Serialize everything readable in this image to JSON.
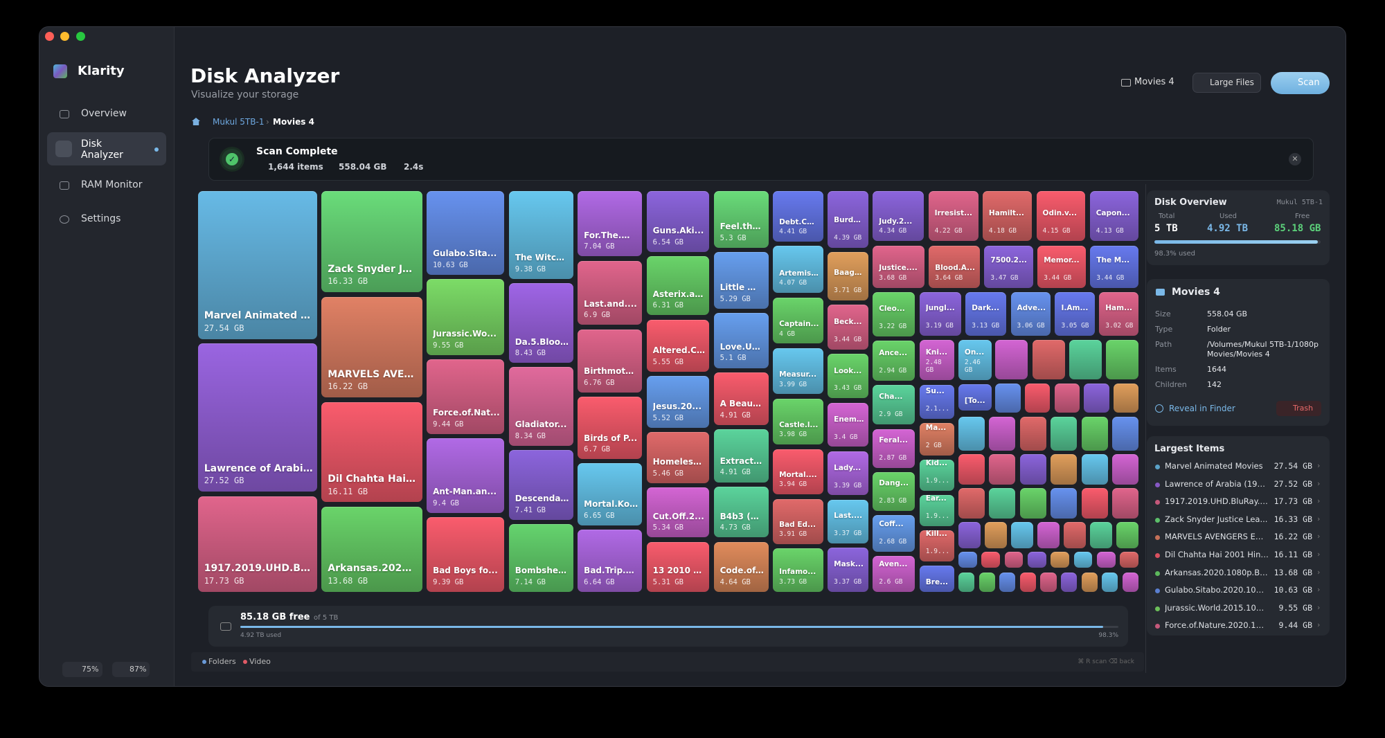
{
  "app": {
    "name": "Klarity"
  },
  "sidebar": {
    "nav": [
      "Overview",
      "Disk Analyzer",
      "RAM Monitor",
      "Settings"
    ],
    "badges": [
      "75%",
      "87%"
    ]
  },
  "header": {
    "title": "Disk Analyzer",
    "subtitle": "Visualize your storage",
    "folder_button": "Movies 4",
    "large_files_button": "Large Files",
    "scan_button": "Scan"
  },
  "breadcrumb": [
    "Mukul 5TB-1",
    "Movies 4"
  ],
  "scan_banner": {
    "title": "Scan Complete",
    "items": "1,644 items",
    "size": "558.04 GB",
    "time": "2.4s"
  },
  "treemap": {
    "groups": [
      {
        "tiles": [
          {
            "label": "Marvel Animated Mov...",
            "size": "27.54 GB",
            "color": "#5aa2c8"
          },
          {
            "label": "Lawrence of Arabia (1...",
            "size": "27.52 GB",
            "color": "#8658c4"
          },
          {
            "label": "1917.2019.UHD.BluRa...",
            "size": "17.73 GB",
            "color": "#c4587a"
          }
        ]
      },
      {
        "tiles": [
          {
            "label": "Zack Snyder Justi...",
            "size": "16.33 GB",
            "color": "#5cbf6a"
          },
          {
            "label": "MARVELS AVENG...",
            "size": "16.22 GB",
            "color": "#c47058"
          },
          {
            "label": "Dil Chahta Hai 20...",
            "size": "16.11 GB",
            "color": "#d9505f"
          },
          {
            "label": "Arkansas.2020.1...",
            "size": "13.68 GB",
            "color": "#5cb85c"
          }
        ]
      },
      {
        "tiles": [
          {
            "label": "Gulabo.Sita...",
            "size": "10.63 GB",
            "color": "#5a7fd0"
          },
          {
            "label": "Jurassic.Wo...",
            "size": "9.55 GB",
            "color": "#6cbf5a"
          },
          {
            "label": "Force.of.Nat...",
            "size": "9.44 GB",
            "color": "#c4587a"
          },
          {
            "label": "Ant-Man.an...",
            "size": "9.4 GB",
            "color": "#9a5cc8"
          },
          {
            "label": "Bad Boys fo...",
            "size": "9.39 GB",
            "color": "#d9505f"
          }
        ]
      },
      {
        "tiles": [
          {
            "label": "The Witch...",
            "size": "9.38 GB",
            "color": "#5aaed0"
          },
          {
            "label": "Da.5.Bloo...",
            "size": "8.43 GB",
            "color": "#8a58c8"
          },
          {
            "label": "Gladiator...",
            "size": "8.34 GB",
            "color": "#c45c88"
          },
          {
            "label": "Descenda...",
            "size": "7.41 GB",
            "color": "#7a58c0"
          },
          {
            "label": "Bombshel...",
            "size": "7.14 GB",
            "color": "#58b860"
          }
        ]
      },
      {
        "tiles": [
          {
            "label": "For.The.W...",
            "size": "7.04 GB",
            "color": "#9a5cc8"
          },
          {
            "label": "Last.and....",
            "size": "6.9 GB",
            "color": "#c4587a"
          },
          {
            "label": "Birthmoth...",
            "size": "6.76 GB",
            "color": "#c4587a"
          },
          {
            "label": "Birds of P...",
            "size": "6.7 GB",
            "color": "#d9505f"
          },
          {
            "label": "Mortal.Ko...",
            "size": "6.65 GB",
            "color": "#5aaed0"
          },
          {
            "label": "Bad.Trip.2...",
            "size": "6.64 GB",
            "color": "#9a5cc8"
          }
        ]
      },
      {
        "tiles": [
          {
            "label": "Guns.Aki...",
            "size": "6.54 GB",
            "color": "#7a58c0"
          },
          {
            "label": "Asterix.an...",
            "size": "6.31 GB",
            "color": "#5cb85c"
          },
          {
            "label": "Altered.C...",
            "size": "5.55 GB",
            "color": "#d9505f"
          },
          {
            "label": "Jesus.20...",
            "size": "5.52 GB",
            "color": "#5a8ad0"
          },
          {
            "label": "Homeless...",
            "size": "5.46 GB",
            "color": "#c45c5c"
          },
          {
            "label": "Cut.Off.2...",
            "size": "5.34 GB",
            "color": "#b858b8"
          },
          {
            "label": "13 2010 B...",
            "size": "5.31 GB",
            "color": "#d9505f"
          }
        ]
      },
      {
        "tiles": [
          {
            "label": "Feel.the....",
            "size": "5.3 GB",
            "color": "#5cbf6a"
          },
          {
            "label": "Little Wo...",
            "size": "5.29 GB",
            "color": "#5a8ad0"
          },
          {
            "label": "Love.Und...",
            "size": "5.1 GB",
            "color": "#5a8ad0"
          },
          {
            "label": "A Beautif...",
            "size": "4.91 GB",
            "color": "#d9505f"
          },
          {
            "label": "Extractio...",
            "size": "4.91 GB",
            "color": "#4fb888"
          },
          {
            "label": "B4b3 (B...",
            "size": "4.73 GB",
            "color": "#4fb888"
          },
          {
            "label": "Code.of....",
            "size": "4.64 GB",
            "color": "#c47a50"
          }
        ]
      },
      {
        "tiles": [
          {
            "label": "Debt.Co...",
            "size": "4.41 GB",
            "color": "#5a6ad0"
          },
          {
            "label": "Artemis...",
            "size": "4.07 GB",
            "color": "#5aaed0"
          },
          {
            "label": "Captain...",
            "size": "4 GB",
            "color": "#5cb85c"
          },
          {
            "label": "Measur...",
            "size": "3.99 GB",
            "color": "#5aaed0"
          },
          {
            "label": "Castle.l...",
            "size": "3.98 GB",
            "color": "#5cb85c"
          },
          {
            "label": "Mortal....",
            "size": "3.94 GB",
            "color": "#d9505f"
          },
          {
            "label": "Bad Ed...",
            "size": "3.91 GB",
            "color": "#c45c5c"
          },
          {
            "label": "Infamo...",
            "size": "3.73 GB",
            "color": "#5cb85c"
          }
        ]
      },
      {
        "tiles": [
          {
            "label": "Burden....",
            "size": "4.39 GB",
            "color": "#7a58c0"
          },
          {
            "label": "Baaghi...",
            "size": "3.71 GB",
            "color": "#c48a50"
          },
          {
            "label": "Beck...",
            "size": "3.44 GB",
            "color": "#c4587a"
          },
          {
            "label": "Look...",
            "size": "3.43 GB",
            "color": "#5cb85c"
          },
          {
            "label": "Enem...",
            "size": "3.4 GB",
            "color": "#b858b8"
          },
          {
            "label": "Lady...",
            "size": "3.39 GB",
            "color": "#9a5cc8"
          },
          {
            "label": "Last....",
            "size": "3.37 GB",
            "color": "#5aaed0"
          },
          {
            "label": "Mask...",
            "size": "3.37 GB",
            "color": "#7a58c0"
          }
        ]
      },
      {
        "tiles": [
          {
            "label": "Judy.2...",
            "size": "4.34 GB",
            "color": "#7a58c0"
          },
          {
            "label": "Irresist...",
            "size": "4.22 GB",
            "color": "#c4587a"
          },
          {
            "label": "Hamilt...",
            "size": "4.18 GB",
            "color": "#c45c5c"
          },
          {
            "label": "Odin.v...",
            "size": "4.15 GB",
            "color": "#d9505f"
          },
          {
            "label": "Capon...",
            "size": "4.13 GB",
            "color": "#7a58c0"
          }
        ]
      },
      {
        "tiles": [
          {
            "label": "Justice....",
            "size": "3.68 GB",
            "color": "#c4587a"
          },
          {
            "label": "Blood.A...",
            "size": "3.64 GB",
            "color": "#c45c5c"
          },
          {
            "label": "7500.2...",
            "size": "3.47 GB",
            "color": "#7a58c0"
          },
          {
            "label": "Memor...",
            "size": "3.44 GB",
            "color": "#d9505f"
          },
          {
            "label": "The M...",
            "size": "3.44 GB",
            "color": "#5a6ad0"
          }
        ]
      },
      {
        "tiles": [
          {
            "label": "Cleo...",
            "size": "3.22 GB",
            "color": "#5cb85c"
          },
          {
            "label": "Ance...",
            "size": "2.94 GB",
            "color": "#5cb85c"
          },
          {
            "label": "Cha...",
            "size": "2.9 GB",
            "color": "#4fb888"
          },
          {
            "label": "Feral...",
            "size": "2.87 GB",
            "color": "#b858b8"
          },
          {
            "label": "Dang...",
            "size": "2.83 GB",
            "color": "#5cb85c"
          },
          {
            "label": "Coff...",
            "size": "2.68 GB",
            "color": "#5a8ad0"
          },
          {
            "label": "Aven...",
            "size": "2.6 GB",
            "color": "#b858b8"
          }
        ]
      },
      {
        "tiles": [
          {
            "label": "Jungl...",
            "size": "3.19 GB",
            "color": "#7a58c0"
          },
          {
            "label": "Dark...",
            "size": "3.13 GB",
            "color": "#5a6ad0"
          },
          {
            "label": "Adve...",
            "size": "3.06 GB",
            "color": "#5a7fd0"
          },
          {
            "label": "I.Am...",
            "size": "3.05 GB",
            "color": "#5a6ad0"
          },
          {
            "label": "Ham...",
            "size": "3.02 GB",
            "color": "#c4587a"
          }
        ]
      },
      {
        "tiles": [
          {
            "label": "Kni...",
            "size": "2.48 GB",
            "color": "#b858b8"
          },
          {
            "label": "Su...",
            "size": "2.1...",
            "color": "#5a6ad0"
          },
          {
            "label": "Ma...",
            "size": "2 GB",
            "color": "#c47058"
          },
          {
            "label": "Kid...",
            "size": "1.9...",
            "color": "#4fb888"
          },
          {
            "label": "Ear...",
            "size": "1.9...",
            "color": "#4fb888"
          },
          {
            "label": "Kill...",
            "size": "1.9...",
            "color": "#c45c5c"
          },
          {
            "label": "Bre...",
            "color": "#5a6ad0"
          }
        ]
      },
      {
        "tiles": [
          {
            "label": "On...",
            "size": "2.46 GB",
            "color": "#5aaed0"
          },
          {
            "label": "[To...",
            "color": "#5a6ad0"
          }
        ]
      }
    ]
  },
  "free_bar": {
    "free": "85.18 GB free",
    "of": "of 5 TB",
    "used": "4.92 TB used",
    "percent": "98.3%"
  },
  "legend": [
    "Folders",
    "Video"
  ],
  "shortcuts": "⌘ R scan  ⌫ back",
  "disk_overview": {
    "title": "Disk Overview",
    "disk": "Mukul 5TB-1",
    "total_label": "Total",
    "total": "5 TB",
    "used_label": "Used",
    "used": "4.92 TB",
    "free_label": "Free",
    "free": "85.18 GB",
    "used_percent": "98.3% used"
  },
  "folder_info": {
    "title": "Movies 4",
    "rows": [
      [
        "Size",
        "558.04 GB"
      ],
      [
        "Type",
        "Folder"
      ],
      [
        "Path",
        "/Volumes/Mukul 5TB-1/1080p Movies/Movies 4"
      ],
      [
        "Items",
        "1644"
      ],
      [
        "Children",
        "142"
      ]
    ],
    "reveal": "Reveal in Finder",
    "trash": "Trash"
  },
  "largest_items": {
    "title": "Largest Items",
    "items": [
      {
        "name": "Marvel Animated Movies",
        "size": "27.54 GB",
        "color": "#5aa2c8"
      },
      {
        "name": "Lawrence of Arabia (196...",
        "size": "27.52 GB",
        "color": "#8658c4"
      },
      {
        "name": "1917.2019.UHD.BluRay.21...",
        "size": "17.73 GB",
        "color": "#c4587a"
      },
      {
        "name": "Zack Snyder Justice Lea...",
        "size": "16.33 GB",
        "color": "#5cbf6a"
      },
      {
        "name": "MARVELS AVENGERS EN...",
        "size": "16.22 GB",
        "color": "#c47058"
      },
      {
        "name": "Dil Chahta Hai 2001 Hindi 1...",
        "size": "16.11 GB",
        "color": "#d9505f"
      },
      {
        "name": "Arkansas.2020.1080p.Blu...",
        "size": "13.68 GB",
        "color": "#5cb85c"
      },
      {
        "name": "Gulabo.Sitabo.2020.1080...",
        "size": "10.63 GB",
        "color": "#5a7fd0"
      },
      {
        "name": "Jurassic.World.2015.1080p...",
        "size": "9.55 GB",
        "color": "#6cbf5a"
      },
      {
        "name": "Force.of.Nature.2020.1080...",
        "size": "9.44 GB",
        "color": "#c4587a"
      }
    ]
  }
}
